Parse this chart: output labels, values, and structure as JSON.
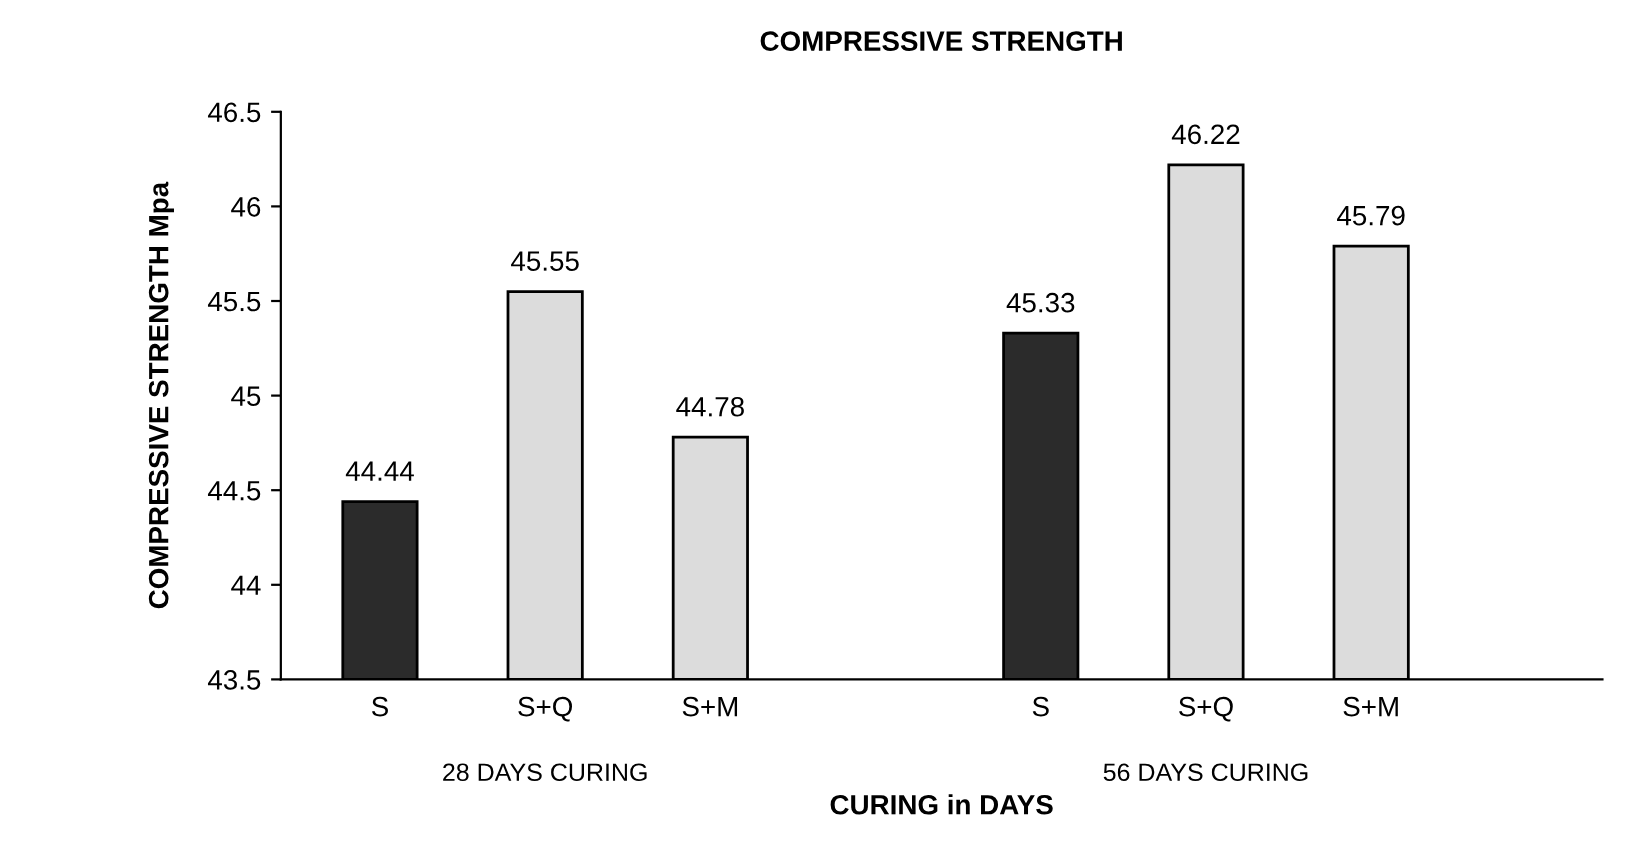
{
  "chart_data": {
    "type": "bar",
    "title": "COMPRESSIVE STRENGTH",
    "xlabel": "CURING in DAYS",
    "ylabel": "COMPRESSIVE STRENGTH Mpa",
    "categories": [
      "S",
      "S+Q",
      "S+M",
      null,
      "S",
      "S+Q",
      "S+M"
    ],
    "values": [
      44.44,
      45.55,
      44.78,
      null,
      45.33,
      46.22,
      45.79
    ],
    "colors": [
      "#2b2b2b",
      "#dcdcdc",
      "#dcdcdc",
      "#ffffff",
      "#2b2b2b",
      "#dcdcdc",
      "#dcdcdc"
    ],
    "ylim": [
      43.5,
      46.5
    ],
    "yticks": [
      43.5,
      44,
      44.5,
      45,
      45.5,
      46,
      46.5
    ],
    "data_labels": true,
    "grid": false,
    "legend": false,
    "annotations": [
      "28 DAYS CURING",
      "56 DAYS CURING"
    ]
  }
}
